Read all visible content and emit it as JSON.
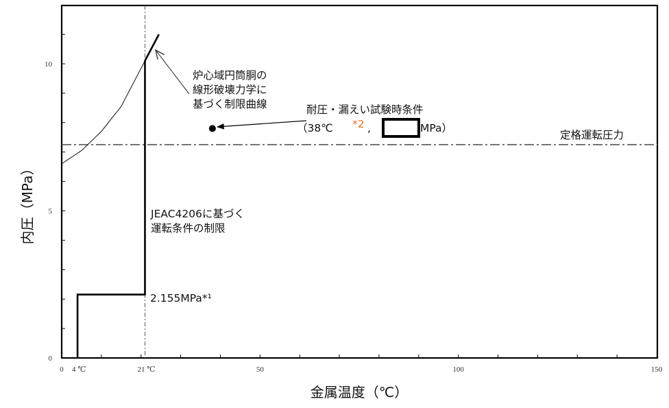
{
  "chart_data": {
    "type": "line",
    "xlabel": "金属温度（℃）",
    "ylabel": "内圧（MPa）",
    "xlim": [
      0,
      150
    ],
    "ylim": [
      0,
      12
    ],
    "x_ticks": [
      "0",
      "50",
      "100",
      "150"
    ],
    "x_extra_ticks": [
      "4 ℃",
      "21 ℃"
    ],
    "y_ticks": [
      "0",
      "5",
      "10"
    ],
    "series": [
      {
        "style": "solid-bold",
        "points": [
          [
            4,
            0
          ],
          [
            4,
            2.155
          ],
          [
            21,
            2.155
          ],
          [
            21,
            10.1
          ],
          [
            24.5,
            11.0
          ]
        ]
      },
      {
        "style": "solid-thin",
        "points": [
          [
            0,
            6.6
          ],
          [
            5,
            7.05
          ],
          [
            10,
            7.7
          ],
          [
            15,
            8.55
          ],
          [
            21,
            10.1
          ],
          [
            24.5,
            11.0
          ]
        ]
      }
    ],
    "reference_lines": [
      {
        "axis": "y",
        "value": 7.25,
        "style": "dash-dot",
        "label": "定格運転圧力"
      },
      {
        "axis": "x",
        "value": 21,
        "style": "dash-dot"
      }
    ],
    "points": [
      {
        "x": 38,
        "y": 7.8
      }
    ],
    "annotations": {
      "curve_label": [
        "炉心域円筒胴の",
        "線形破壊力学に",
        "基づく制限曲線"
      ],
      "test_label_line1": "耐圧・漏えい試験時条件",
      "test_label_open": "（38℃",
      "test_label_note": "*2",
      "test_label_comma": ",",
      "test_label_unit": "MPa）",
      "jeac_label": [
        "JEAC4206に基づく",
        "運転条件の制限"
      ],
      "step_label": "2.155MPa*¹"
    }
  }
}
